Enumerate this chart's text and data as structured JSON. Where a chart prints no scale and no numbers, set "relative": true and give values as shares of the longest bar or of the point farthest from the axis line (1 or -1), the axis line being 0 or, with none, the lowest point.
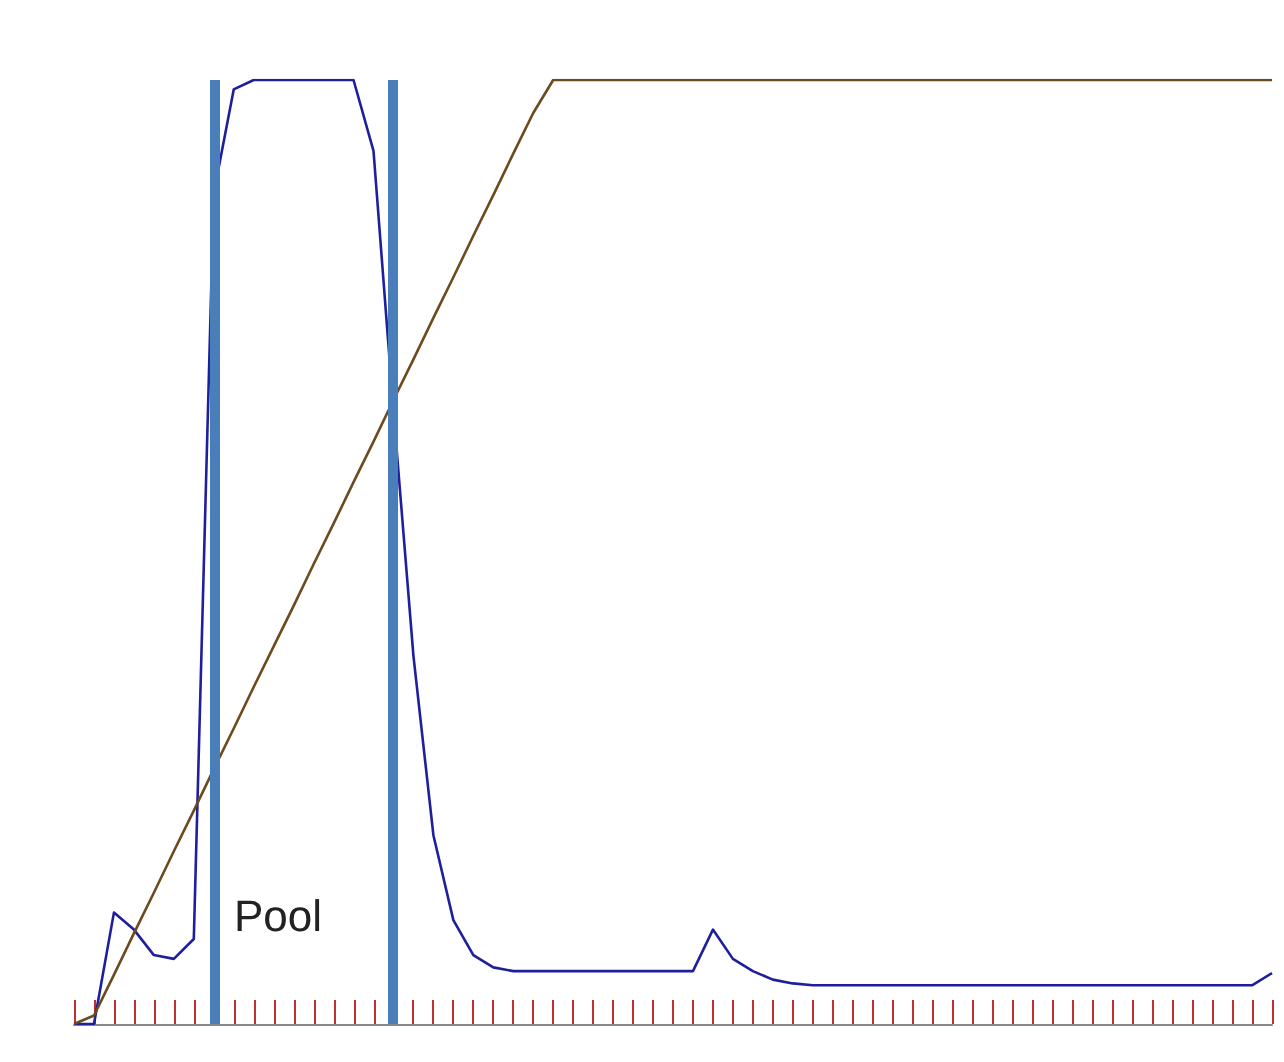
{
  "chart_data": {
    "type": "line",
    "relative": true,
    "categories": [
      null,
      null,
      null,
      null,
      null,
      null,
      null,
      null,
      null,
      null,
      null,
      null,
      null,
      null,
      null,
      null,
      null,
      null,
      null,
      null,
      null,
      null,
      null,
      null,
      null,
      null,
      null,
      null,
      null,
      null,
      null,
      null,
      null,
      null,
      null,
      null,
      null,
      null,
      null,
      null,
      null,
      null,
      null,
      null,
      null,
      null,
      null,
      null,
      null,
      null,
      null,
      null,
      null,
      null,
      null,
      null,
      null,
      null,
      null,
      null,
      null
    ],
    "series": [
      {
        "color": "#1f1f9e",
        "values": [
          0,
          0,
          0.118,
          0.1,
          0.073,
          0.069,
          0.09,
          0.88,
          0.99,
          1,
          1,
          1,
          1,
          1,
          1,
          0.925,
          0.65,
          0.39,
          0.2,
          0.11,
          0.073,
          0.06,
          0.056,
          0.056,
          0.056,
          0.056,
          0.056,
          0.056,
          0.056,
          0.056,
          0.056,
          0.056,
          0.1,
          0.069,
          0.056,
          0.047,
          0.043,
          0.041,
          0.041,
          0.041,
          0.041,
          0.041,
          0.041,
          0.041,
          0.041,
          0.041,
          0.041,
          0.041,
          0.041,
          0.041,
          0.041,
          0.041,
          0.041,
          0.041,
          0.041,
          0.041,
          0.041,
          0.041,
          0.041,
          0.041,
          0.054
        ]
      },
      {
        "color": "#6b4a1e",
        "values": [
          0,
          0.009,
          0.052,
          0.096,
          0.139,
          0.183,
          0.226,
          0.27,
          0.313,
          0.357,
          0.4,
          0.443,
          0.487,
          0.53,
          0.574,
          0.617,
          0.661,
          0.704,
          0.748,
          0.791,
          0.835,
          0.878,
          0.922,
          0.965,
          1,
          1,
          1,
          1,
          1,
          1,
          1,
          1,
          1,
          1,
          1,
          1,
          1,
          1,
          1,
          1,
          1,
          1,
          1,
          1,
          1,
          1,
          1,
          1,
          1,
          1,
          1,
          1,
          1,
          1,
          1,
          1,
          1,
          1,
          1,
          1,
          1
        ]
      }
    ],
    "annotations": [
      "Pool"
    ],
    "grid": false,
    "marker": "none",
    "line_style": "solid"
  }
}
